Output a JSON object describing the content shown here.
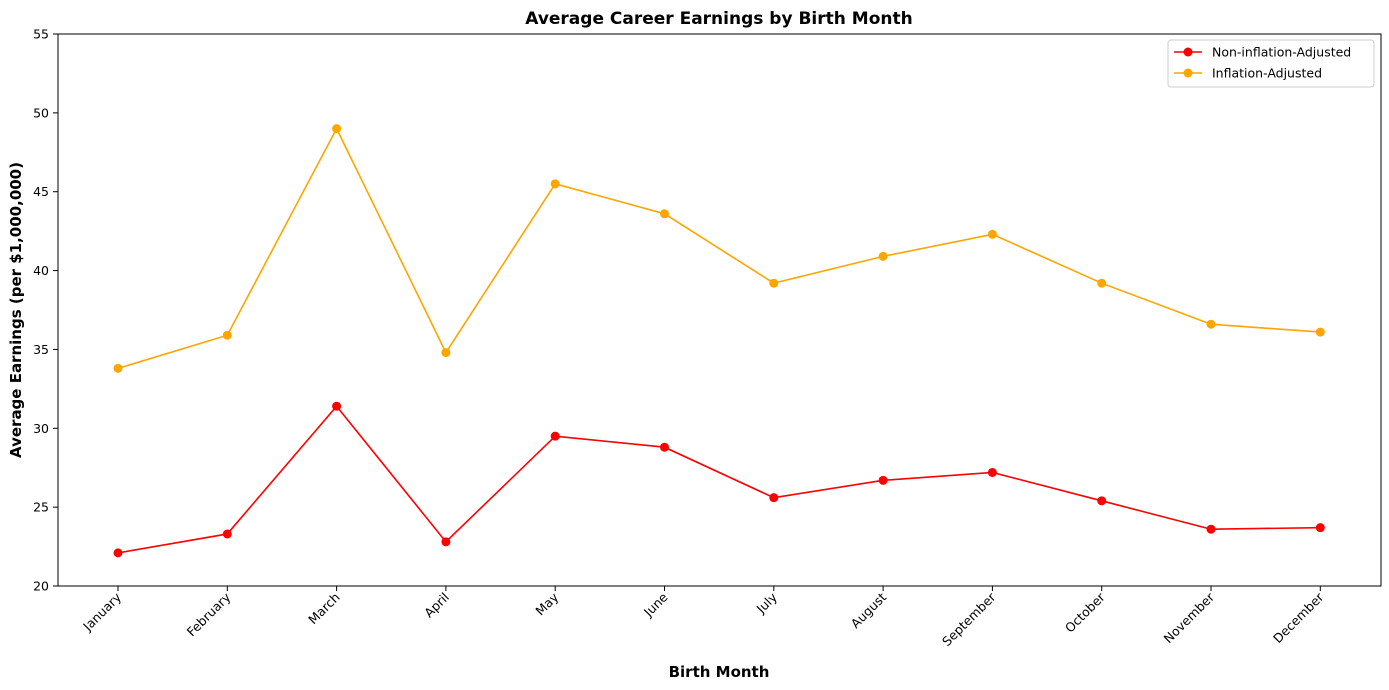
{
  "chart_data": {
    "type": "line",
    "title": "Average Career Earnings by Birth Month",
    "xlabel": "Birth Month",
    "ylabel": "Average Earnings (per $1,000,000)",
    "categories": [
      "January",
      "February",
      "March",
      "April",
      "May",
      "June",
      "July",
      "August",
      "September",
      "October",
      "November",
      "December"
    ],
    "ylim": [
      20,
      55
    ],
    "yticks": [
      20,
      25,
      30,
      35,
      40,
      45,
      50,
      55
    ],
    "grid": false,
    "legend_position": "top-right",
    "series": [
      {
        "name": "Non-inflation-Adjusted",
        "color": "#ff0000",
        "values": [
          22.1,
          23.3,
          31.4,
          22.8,
          29.5,
          28.8,
          25.6,
          26.7,
          27.2,
          25.4,
          23.6,
          23.7
        ]
      },
      {
        "name": "Inflation-Adjusted",
        "color": "#ffa500",
        "values": [
          33.8,
          35.9,
          49.0,
          34.8,
          45.5,
          43.6,
          39.2,
          40.9,
          42.3,
          39.2,
          36.6,
          36.1
        ]
      }
    ]
  }
}
